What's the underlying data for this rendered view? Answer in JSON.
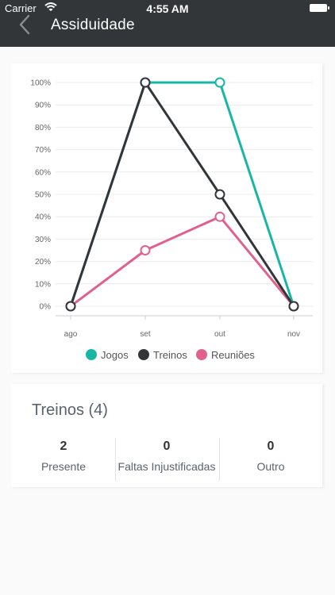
{
  "status_bar": {
    "carrier": "Carrier",
    "time": "4:55 AM"
  },
  "header": {
    "title": "Assiduidade"
  },
  "chart_data": {
    "type": "line",
    "categories": [
      "ago",
      "set",
      "out",
      "nov"
    ],
    "yticks": [
      "0%",
      "10%",
      "20%",
      "30%",
      "40%",
      "50%",
      "60%",
      "70%",
      "80%",
      "90%",
      "100%"
    ],
    "ylim": [
      0,
      100
    ],
    "grid": true,
    "legend_placement": "bottom",
    "series": [
      {
        "name": "Jogos",
        "color": "#19b5a5",
        "values": [
          0,
          100,
          100,
          0
        ]
      },
      {
        "name": "Treinos",
        "color": "#333638",
        "values": [
          0,
          100,
          50,
          0
        ]
      },
      {
        "name": "Reuniões",
        "color": "#e0628c",
        "values": [
          0,
          25,
          40,
          0
        ]
      }
    ]
  },
  "stats": {
    "title": "Treinos (4)",
    "items": [
      {
        "value": "2",
        "label": "Presente"
      },
      {
        "value": "0",
        "label": "Faltas Injustificadas"
      },
      {
        "value": "0",
        "label": "Outro"
      }
    ]
  }
}
